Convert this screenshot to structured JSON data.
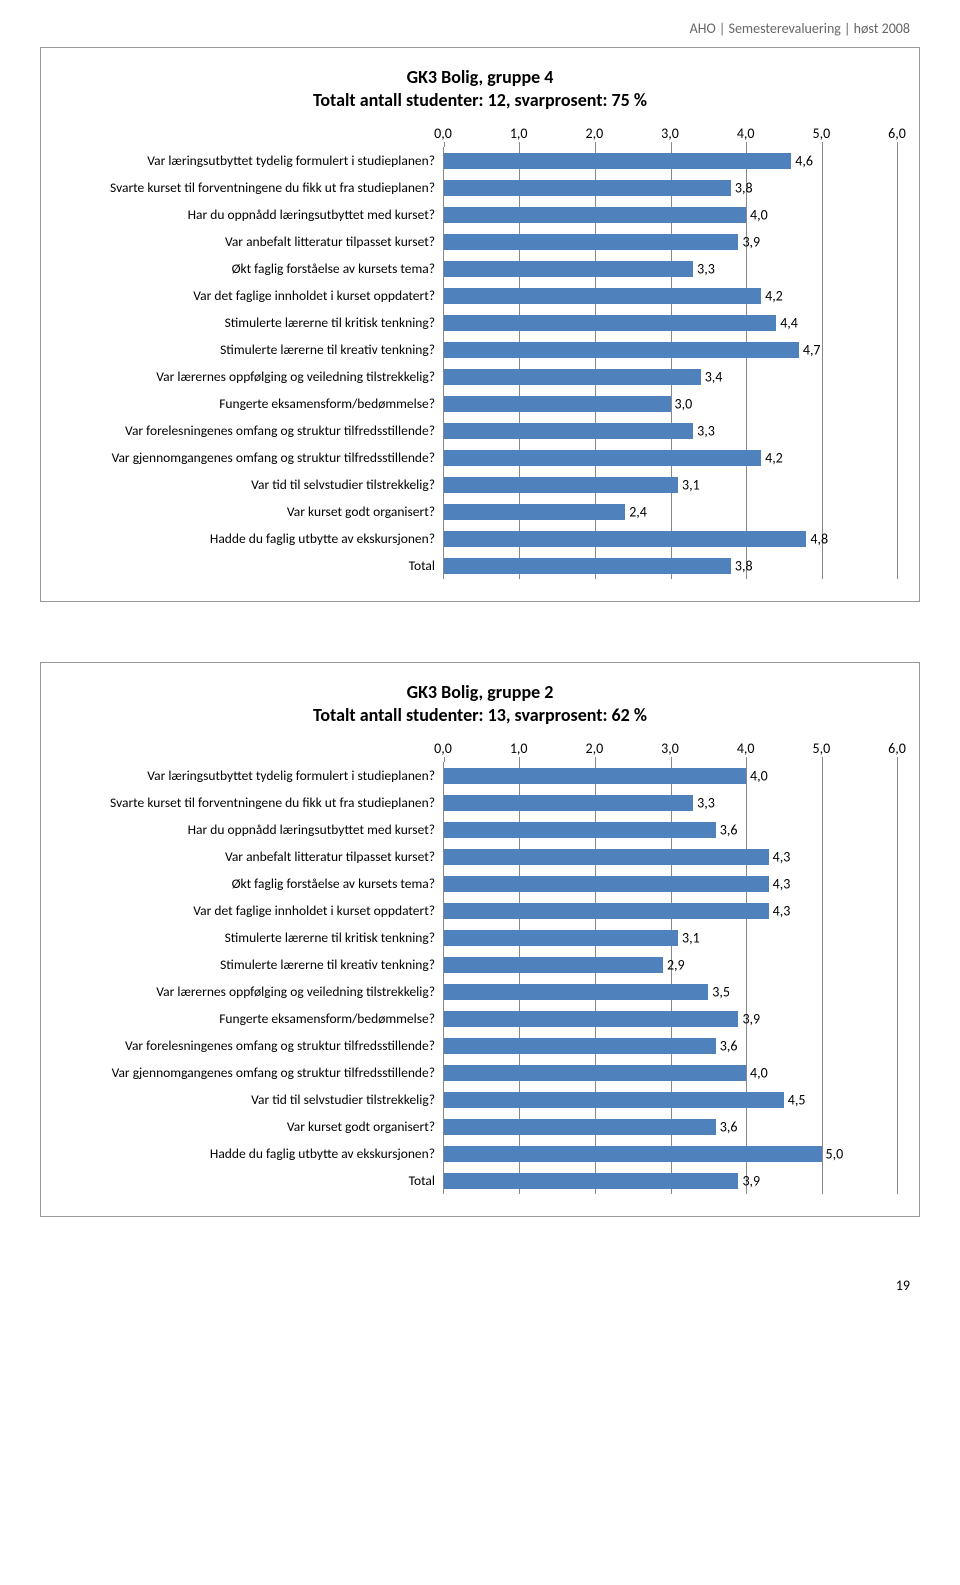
{
  "header": "AHO | Semesterevaluering | høst 2008",
  "page_number": "19",
  "axis": {
    "min": 0.0,
    "max": 6.0,
    "ticks": [
      "0,0",
      "1,0",
      "2,0",
      "3,0",
      "4,0",
      "5,0",
      "6,0"
    ],
    "tick_values": [
      0,
      1,
      2,
      3,
      4,
      5,
      6
    ]
  },
  "bar_color": "#4f81bd",
  "grid_color": "#888888",
  "charts": [
    {
      "title_line1": "GK3 Bolig, gruppe 4",
      "title_line2": "Totalt antall studenter: 12, svarprosent: 75 %",
      "rows": [
        {
          "label": "Var læringsutbyttet tydelig formulert i studieplanen?",
          "value": 4.6,
          "text": "4,6"
        },
        {
          "label": "Svarte kurset til forventningene du fikk ut fra studieplanen?",
          "value": 3.8,
          "text": "3,8"
        },
        {
          "label": "Har du oppnådd læringsutbyttet med kurset?",
          "value": 4.0,
          "text": "4,0"
        },
        {
          "label": "Var anbefalt litteratur tilpasset kurset?",
          "value": 3.9,
          "text": "3,9"
        },
        {
          "label": "Økt faglig forståelse av kursets tema?",
          "value": 3.3,
          "text": "3,3"
        },
        {
          "label": "Var det faglige innholdet i kurset oppdatert?",
          "value": 4.2,
          "text": "4,2"
        },
        {
          "label": "Stimulerte lærerne til kritisk tenkning?",
          "value": 4.4,
          "text": "4,4"
        },
        {
          "label": "Stimulerte lærerne til kreativ tenkning?",
          "value": 4.7,
          "text": "4,7"
        },
        {
          "label": "Var lærernes oppfølging og veiledning tilstrekkelig?",
          "value": 3.4,
          "text": "3,4"
        },
        {
          "label": "Fungerte eksamensform/bedømmelse?",
          "value": 3.0,
          "text": "3,0"
        },
        {
          "label": "Var forelesningenes omfang og struktur tilfredsstillende?",
          "value": 3.3,
          "text": "3,3"
        },
        {
          "label": "Var gjennomgangenes omfang og struktur tilfredsstillende?",
          "value": 4.2,
          "text": "4,2"
        },
        {
          "label": "Var tid til selvstudier tilstrekkelig?",
          "value": 3.1,
          "text": "3,1"
        },
        {
          "label": "Var kurset godt organisert?",
          "value": 2.4,
          "text": "2,4"
        },
        {
          "label": "Hadde du faglig utbytte av ekskursjonen?",
          "value": 4.8,
          "text": "4,8"
        },
        {
          "label": "Total",
          "value": 3.8,
          "text": "3,8"
        }
      ]
    },
    {
      "title_line1": "GK3 Bolig, gruppe 2",
      "title_line2": "Totalt antall studenter: 13, svarprosent: 62 %",
      "rows": [
        {
          "label": "Var læringsutbyttet tydelig formulert i studieplanen?",
          "value": 4.0,
          "text": "4,0"
        },
        {
          "label": "Svarte kurset til forventningene du fikk ut fra studieplanen?",
          "value": 3.3,
          "text": "3,3"
        },
        {
          "label": "Har du oppnådd læringsutbyttet med kurset?",
          "value": 3.6,
          "text": "3,6"
        },
        {
          "label": "Var anbefalt litteratur tilpasset kurset?",
          "value": 4.3,
          "text": "4,3"
        },
        {
          "label": "Økt faglig forståelse av kursets tema?",
          "value": 4.3,
          "text": "4,3"
        },
        {
          "label": "Var det faglige innholdet i kurset oppdatert?",
          "value": 4.3,
          "text": "4,3"
        },
        {
          "label": "Stimulerte lærerne til kritisk tenkning?",
          "value": 3.1,
          "text": "3,1"
        },
        {
          "label": "Stimulerte lærerne til kreativ tenkning?",
          "value": 2.9,
          "text": "2,9"
        },
        {
          "label": "Var lærernes oppfølging og veiledning tilstrekkelig?",
          "value": 3.5,
          "text": "3,5"
        },
        {
          "label": "Fungerte eksamensform/bedømmelse?",
          "value": 3.9,
          "text": "3,9"
        },
        {
          "label": "Var forelesningenes omfang og struktur tilfredsstillende?",
          "value": 3.6,
          "text": "3,6"
        },
        {
          "label": "Var gjennomgangenes omfang og struktur tilfredsstillende?",
          "value": 4.0,
          "text": "4,0"
        },
        {
          "label": "Var tid til selvstudier tilstrekkelig?",
          "value": 4.5,
          "text": "4,5"
        },
        {
          "label": "Var kurset godt organisert?",
          "value": 3.6,
          "text": "3,6"
        },
        {
          "label": "Hadde du faglig utbytte av ekskursjonen?",
          "value": 5.0,
          "text": "5,0"
        },
        {
          "label": "Total",
          "value": 3.9,
          "text": "3,9"
        }
      ]
    }
  ]
}
